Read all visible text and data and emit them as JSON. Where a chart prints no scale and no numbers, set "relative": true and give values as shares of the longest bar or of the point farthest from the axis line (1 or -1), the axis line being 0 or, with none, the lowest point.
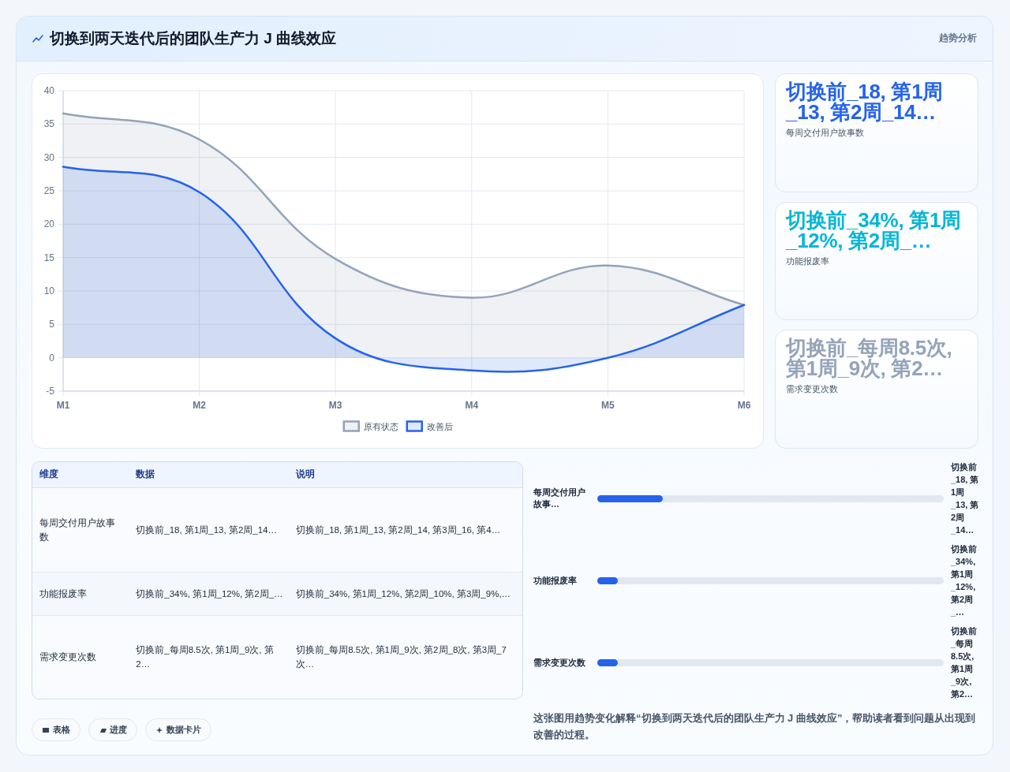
{
  "chart_data": [
    {
      "type": "area",
      "title": "切换到两天迭代后的团队生产力 J 曲线效应",
      "categories": [
        "M1",
        "M2",
        "M3",
        "M4",
        "M5",
        "M6"
      ],
      "series": [
        {
          "name": "原有状态",
          "color": "#94a3b8",
          "values": [
            36.6,
            32.7,
            14.8,
            9,
            13.8,
            7.9
          ]
        },
        {
          "name": "改善后",
          "color": "#2563eb",
          "values": [
            28.6,
            24.8,
            2.9,
            -1.9,
            0,
            7.9
          ]
        }
      ],
      "ylim": [
        -5,
        40
      ],
      "yticks": [
        -5,
        0,
        5,
        10,
        15,
        20,
        25,
        30,
        35,
        40
      ],
      "grid": true,
      "legend": "bottom"
    },
    {
      "type": "other",
      "subtitle": "趋势分析",
      "categories": [
        "每周交付用户故事数",
        "功能报废率",
        "需求变更次数"
      ],
      "value_labels": [
        "切换前_18, 第1周_13, 第2周_14…",
        "切换前_34%, 第1周_12%, 第2周_…",
        "切换前_每周8.5次, 第1周_9次, 第2…"
      ]
    },
    {
      "type": "other",
      "categories": [
        "维度",
        "数据",
        "说明"
      ],
      "cell_labels": [
        [
          "每周交付用户故事数",
          "切换前_18, 第1周_13, 第2周_14…",
          "切换前_18, 第1周_13, 第2周_14, 第3周_16, 第4…"
        ],
        [
          "功能报废率",
          "切换前_34%, 第1周_12%, 第2周_…",
          "切换前_34%, 第1周_12%, 第2周_10%, 第3周_9%,…"
        ],
        [
          "需求变更次数",
          "切换前_每周8.5次, 第1周_9次, 第2…",
          "切换前_每周8.5次, 第1周_9次, 第2周_8次, 第3周_7次…"
        ]
      ],
      "annotations": [
        "表格",
        "进度",
        "数据卡片"
      ]
    },
    {
      "type": "bar",
      "orientation": "horizontal",
      "stacked": true,
      "relative": true,
      "categories": [
        "每周交付用户故事…",
        "功能报废率",
        "需求变更次数"
      ],
      "series": [
        {
          "color": "#2563eb",
          "values": [
            0.19,
            0.06,
            0.06
          ]
        },
        {
          "color": "#e2e8f0",
          "values": [
            0.81,
            0.94,
            0.94
          ]
        }
      ],
      "annotations": [
        "切换前_18, 第1周_13, 第2周_14…",
        "切换前_34%, 第1周_12%, 第2周_…",
        "切换前_每周8.5次, 第1周_9次, 第2…",
        "这张图用趋势变化解释“切换到两天迭代后的团队生产力 J 曲线效应”，帮助读者看到问题从出现到改善的过程。"
      ]
    }
  ]
}
